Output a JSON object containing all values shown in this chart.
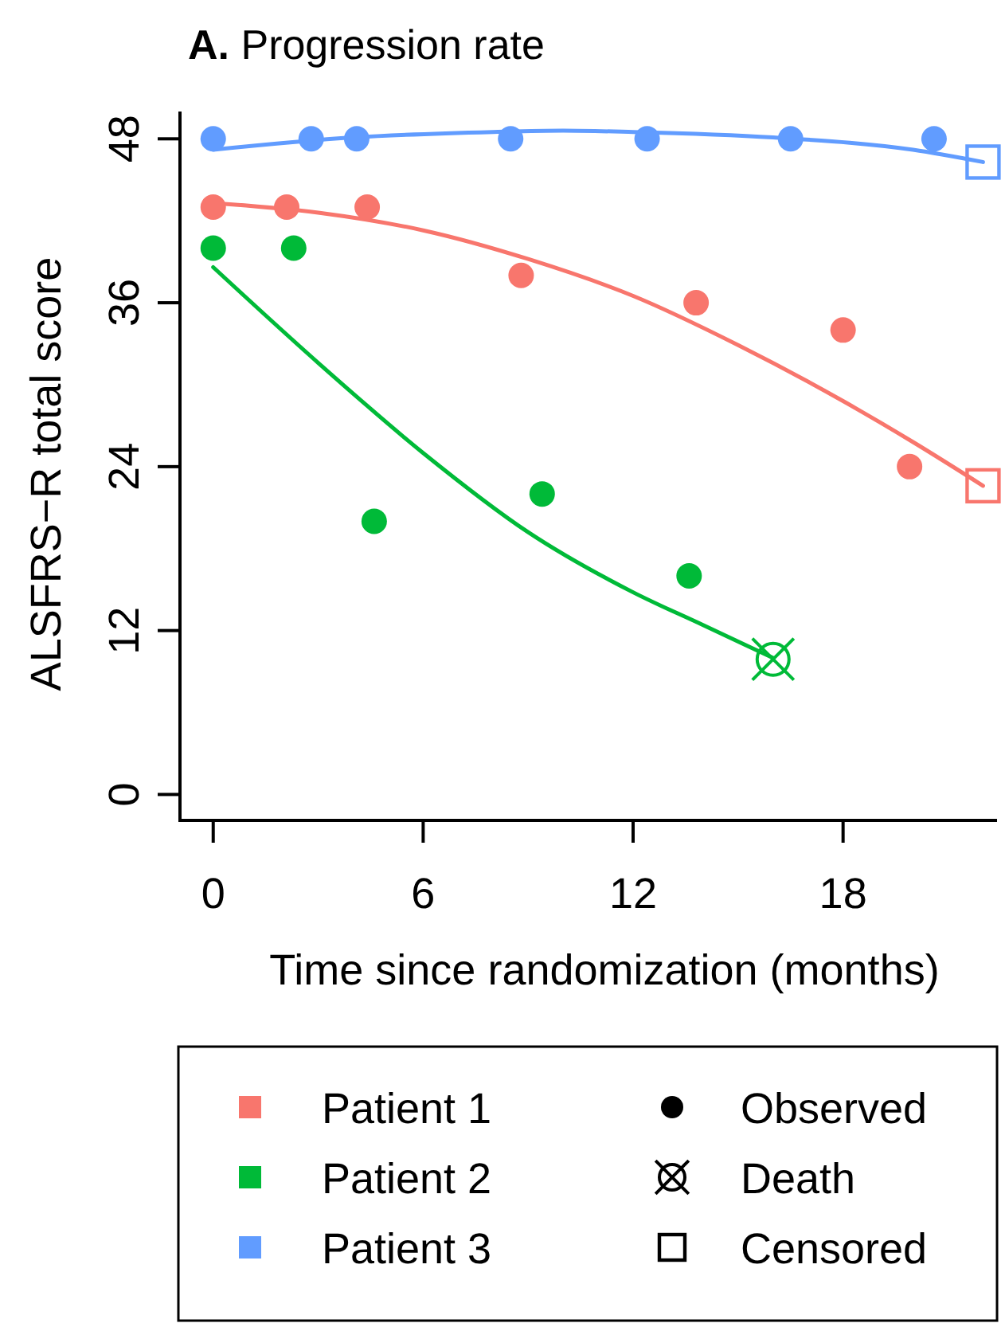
{
  "chart_data": {
    "type": "scatter",
    "title": "A. Progression rate",
    "xlabel": "Time since randomization (months)",
    "ylabel": "ALSFRS−R total score",
    "xlim": [
      -0.95,
      22.4
    ],
    "ylim": [
      -1.9,
      50
    ],
    "xticks": [
      0,
      6,
      12,
      18
    ],
    "yticks": [
      0,
      12,
      24,
      36,
      48
    ],
    "grid": false,
    "legend": "bottom",
    "line_style": "solid",
    "annotations": [
      "Observed",
      "Death",
      "Censored"
    ],
    "series": [
      {
        "name": "Patient 1",
        "color": "#f8766d",
        "marker": "circle",
        "x": [
          0,
          2.1,
          4.4,
          8.8,
          13.8,
          18.0,
          19.9
        ],
        "values": [
          43.0,
          43.0,
          43.0,
          38.0,
          36.0,
          34.0,
          24.0
        ]
      },
      {
        "name": "Patient 2",
        "color": "#00ba38",
        "marker": "circle",
        "x": [
          0,
          2.3,
          4.6,
          9.4,
          13.6
        ],
        "values": [
          40.0,
          40.0,
          20.0,
          22.0,
          16.0
        ]
      },
      {
        "name": "Patient 3",
        "color": "#619cff",
        "marker": "circle",
        "x": [
          0,
          2.8,
          4.1,
          8.5,
          12.4,
          16.5,
          20.6
        ],
        "values": [
          48.0,
          48.0,
          48.0,
          48.0,
          48.0,
          48.0,
          48.0
        ]
      },
      {
        "type": "line",
        "color": "#f8766d",
        "marker": "none",
        "x": [
          0,
          3,
          6,
          9,
          12,
          15,
          18,
          20,
          22
        ],
        "values": [
          43.3,
          42.6,
          41.3,
          39.2,
          36.5,
          32.9,
          28.8,
          25.8,
          22.6
        ]
      },
      {
        "type": "line",
        "color": "#00ba38",
        "marker": "none",
        "x": [
          0,
          3,
          6,
          9,
          12,
          14,
          16
        ],
        "values": [
          38.6,
          31.6,
          25.0,
          19.2,
          14.8,
          12.4,
          10.0
        ]
      },
      {
        "type": "line",
        "color": "#619cff",
        "marker": "none",
        "x": [
          0,
          4,
          8,
          10,
          12,
          16,
          20,
          22
        ],
        "values": [
          47.2,
          48.1,
          48.5,
          48.6,
          48.5,
          48.1,
          47.2,
          46.3
        ]
      },
      {
        "marker": "cross",
        "color": "#00ba38",
        "x": [
          16.0
        ],
        "values": [
          9.9
        ]
      },
      {
        "marker": "square",
        "color": "#f8766d",
        "x": [
          22.0
        ],
        "values": [
          22.6
        ]
      },
      {
        "marker": "square",
        "color": "#619cff",
        "x": [
          22.0
        ],
        "values": [
          46.3
        ]
      }
    ]
  }
}
